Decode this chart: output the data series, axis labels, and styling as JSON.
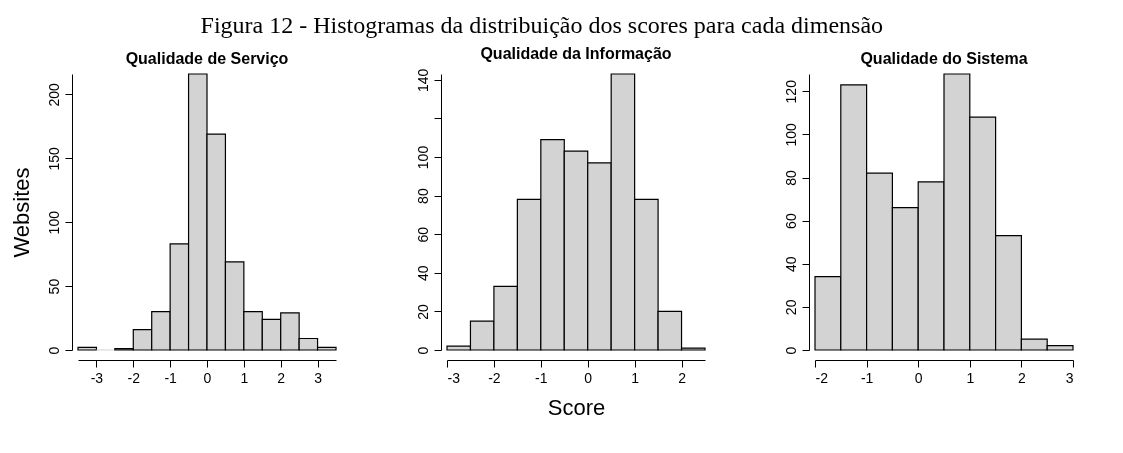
{
  "chart_data": [
    {
      "type": "histogram",
      "title": "Qualidade de Serviço",
      "ylabel": "Websites",
      "annotations": [
        "Figura 12 - Histogramas da distribuição dos scores para cada dimensão"
      ],
      "bins": [
        -3.5,
        -3,
        -2.5,
        -2,
        -1.5,
        -1,
        -0.5,
        0,
        0.5,
        1,
        1.5,
        2,
        2.5,
        3,
        3.5
      ],
      "values": [
        2,
        0,
        1,
        16,
        30,
        83,
        216,
        169,
        69,
        30,
        24,
        29,
        9,
        2
      ],
      "color": "#d3d3d3",
      "xlim": [
        -3.5,
        3.5
      ],
      "xticks": [
        -3,
        -2,
        -1,
        0,
        1,
        2,
        3
      ],
      "ylim": [
        0,
        216
      ],
      "yticks": [
        0,
        50,
        100,
        150,
        200
      ]
    },
    {
      "type": "histogram",
      "title": "Qualidade da Informação",
      "xlabel": "Score",
      "bins": [
        -3,
        -2.5,
        -2,
        -1.5,
        -1,
        -0.5,
        0,
        0.5,
        1,
        1.5,
        2,
        2.5
      ],
      "values": [
        2,
        15,
        33,
        78,
        109,
        103,
        97,
        143,
        78,
        20,
        1
      ],
      "color": "#d3d3d3",
      "xlim": [
        -3,
        2.5
      ],
      "xticks": [
        -3,
        -2,
        -1,
        0,
        1,
        2
      ],
      "ylim": [
        0,
        143
      ],
      "yticks": [
        0,
        20,
        40,
        60,
        80,
        100,
        {
          "value": 120,
          "label": null
        },
        140
      ]
    },
    {
      "type": "histogram",
      "title": "Qualidade do Sistema",
      "bins": [
        -2,
        -1.5,
        -1,
        -0.5,
        0,
        0.5,
        1,
        1.5,
        2,
        2.5,
        3
      ],
      "values": [
        34,
        123,
        82,
        66,
        78,
        128,
        108,
        53,
        5,
        2
      ],
      "color": "#d3d3d3",
      "xlim": [
        -2,
        3
      ],
      "xticks": [
        -2,
        -1,
        0,
        1,
        2,
        3
      ],
      "ylim": [
        0,
        128
      ],
      "yticks": [
        0,
        20,
        40,
        60,
        80,
        100,
        120
      ]
    }
  ]
}
